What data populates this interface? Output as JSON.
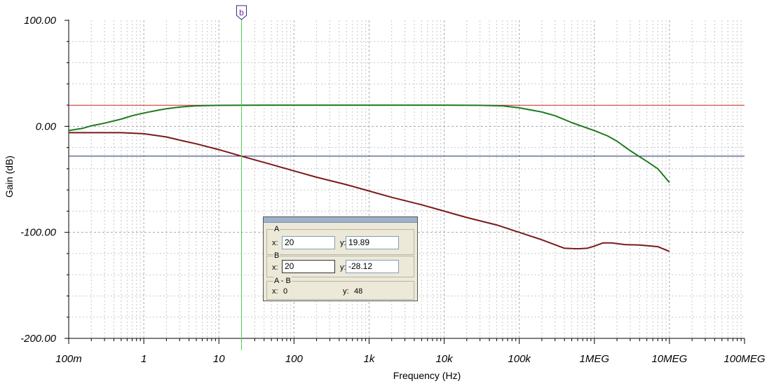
{
  "chart_data": {
    "type": "line",
    "xlabel": "Frequency (Hz)",
    "ylabel": "Gain (dB)",
    "xscale": "log",
    "xlim": [
      0.1,
      100000000
    ],
    "ylim": [
      -200,
      100
    ],
    "grid": true,
    "x_ticks": [
      {
        "value": 0.1,
        "label": "100m"
      },
      {
        "value": 1,
        "label": "1"
      },
      {
        "value": 10,
        "label": "10"
      },
      {
        "value": 100,
        "label": "100"
      },
      {
        "value": 1000,
        "label": "1k"
      },
      {
        "value": 10000,
        "label": "10k"
      },
      {
        "value": 100000,
        "label": "100k"
      },
      {
        "value": 1000000,
        "label": "1MEG"
      },
      {
        "value": 10000000,
        "label": "10MEG"
      },
      {
        "value": 100000000,
        "label": "100MEG"
      }
    ],
    "y_ticks": [
      {
        "value": 100,
        "label": "100.00"
      },
      {
        "value": 0,
        "label": "0.00"
      },
      {
        "value": -100,
        "label": "-100.00"
      },
      {
        "value": -200,
        "label": "-200.00"
      }
    ],
    "series": [
      {
        "color": "#1f7a1f",
        "x": [
          0.1,
          0.15,
          0.2,
          0.3,
          0.5,
          0.7,
          1,
          1.5,
          2,
          3,
          4,
          5,
          7,
          10,
          20,
          100,
          1000,
          10000,
          30000,
          60000,
          100000,
          200000,
          300000,
          500000,
          1000000,
          1500000,
          2000000,
          3000000,
          5000000,
          7000000,
          10000000
        ],
        "y": [
          -4,
          -2,
          0.5,
          3,
          6.8,
          10,
          12.6,
          15,
          16.6,
          18.1,
          18.9,
          19.3,
          19.6,
          19.8,
          19.89,
          20,
          20,
          20,
          19.8,
          19.3,
          17.5,
          13.5,
          10,
          3.5,
          -4,
          -9,
          -14,
          -23,
          -33,
          -40,
          -53
        ]
      },
      {
        "color": "#7a1a1a",
        "x": [
          0.1,
          0.2,
          0.5,
          1,
          2,
          3,
          5,
          10,
          20,
          50,
          100,
          200,
          500,
          1000,
          2000,
          5000,
          10000,
          20000,
          50000,
          100000,
          200000,
          400000,
          600000,
          800000,
          1000000,
          1300000,
          1700000,
          2500000,
          4000000,
          7000000,
          10000000
        ],
        "y": [
          -6,
          -6,
          -6,
          -7,
          -10,
          -13,
          -16.5,
          -22,
          -28.12,
          -36,
          -42,
          -48,
          -55,
          -61,
          -67,
          -74,
          -80,
          -86,
          -93,
          -100,
          -107,
          -115,
          -115.5,
          -115,
          -113,
          -110,
          -110,
          -111.5,
          -112,
          -113.5,
          -118
        ]
      }
    ],
    "reference_lines": [
      {
        "y": 19.89,
        "color": "#d42a1a"
      },
      {
        "y": -28.12,
        "color": "#1f2a6a"
      }
    ],
    "cursor": {
      "x": 20,
      "label": "b",
      "color": "#4ad44a",
      "marker_color": "#2a2a8a"
    }
  },
  "cursor_panel": {
    "a_label": "A",
    "a_x_label": "x:",
    "a_x": "20",
    "a_y_label": "y:",
    "a_y": "19.89",
    "b_label": "B",
    "b_x_label": "x:",
    "b_x": "20",
    "b_y_label": "y:",
    "b_y": "-28.12",
    "diff_label": "A - B",
    "diff_x_label": "x:",
    "diff_x": "0",
    "diff_y_label": "y:",
    "diff_y": "48"
  }
}
